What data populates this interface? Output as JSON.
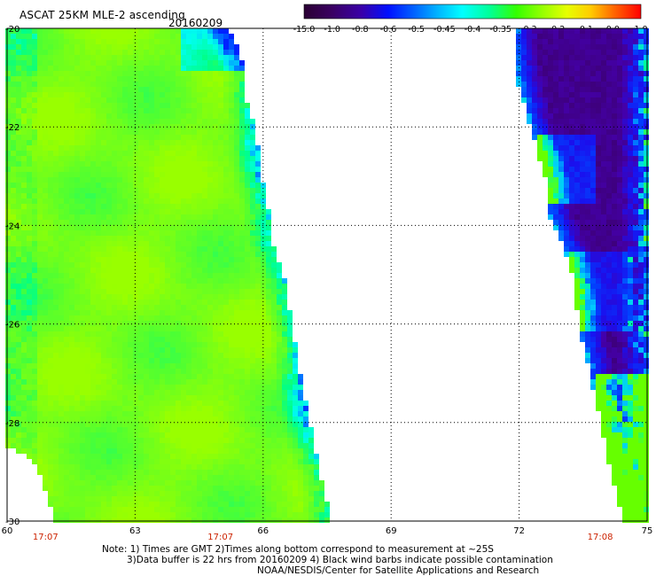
{
  "header": {
    "title": "ASCAT 25KM MLE-2 ascending",
    "date": "20160209"
  },
  "colorbar": {
    "labels": [
      "-15.0",
      "-1.0",
      "-0.8",
      "-0.6",
      "-0.5",
      "-0.45",
      "-0.4",
      "-0.35",
      "-0.3",
      "-0.2",
      "-0.1",
      "0.0",
      "1.0"
    ]
  },
  "map": {
    "lat_labels": [
      "-20",
      "-22",
      "-24",
      "-26",
      "-28",
      "-30"
    ],
    "lon_labels": [
      "60",
      "63",
      "66",
      "69",
      "72",
      "75"
    ],
    "lat_range": [
      -30,
      -20
    ],
    "lon_range": [
      60,
      75
    ],
    "time_labels": [
      {
        "time": "17:07",
        "lon": 60.9
      },
      {
        "time": "17:07",
        "lon": 65.0
      },
      {
        "time": "17:08",
        "lon": 73.9
      }
    ],
    "colors": {
      "time_label": "#cc2200",
      "grid": "#000000"
    }
  },
  "notes": {
    "line1": "Note: 1) Times are GMT 2)Times along bottom correspond to measurement at ~25S",
    "line2": "3)Data buffer is 22 hrs from 20160209 4) Black wind barbs indicate possible contamination",
    "line3": "NOAA/NESDIS/Center for Satellite Applications and Research"
  }
}
